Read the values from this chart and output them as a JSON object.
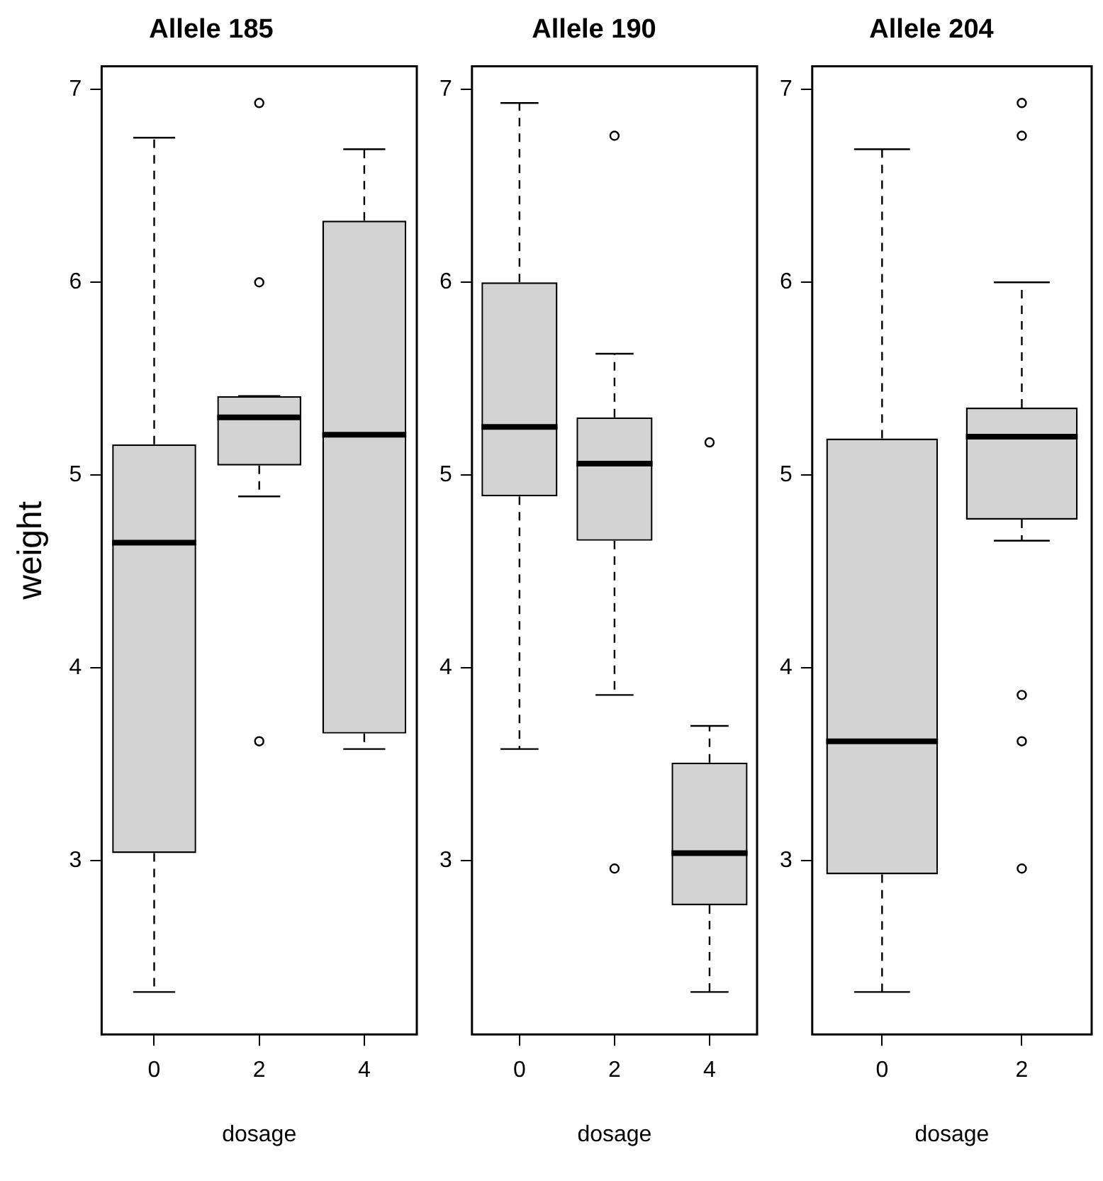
{
  "chart_data": [
    {
      "type": "box",
      "title": "Allele 185",
      "xlabel": "dosage",
      "ylabel": "weight",
      "categories": [
        "0",
        "2",
        "4"
      ],
      "ylim": [
        2.1,
        7.12
      ],
      "yticks": [
        3,
        4,
        5,
        6,
        7
      ],
      "boxes": [
        {
          "low": 2.32,
          "q1": 3.04,
          "median": 4.65,
          "q3": 5.16,
          "high": 6.75
        },
        {
          "low": 4.89,
          "q1": 5.05,
          "median": 5.3,
          "q3": 5.41,
          "high": 5.41,
          "outliers": [
            6.93,
            6.0,
            3.62
          ]
        },
        {
          "low": 3.58,
          "q1": 3.66,
          "median": 5.21,
          "q3": 6.32,
          "high": 6.69
        }
      ]
    },
    {
      "type": "box",
      "title": "Allele 190",
      "xlabel": "dosage",
      "categories": [
        "0",
        "2",
        "4"
      ],
      "ylim": [
        2.1,
        7.12
      ],
      "yticks": [
        3,
        4,
        5,
        6,
        7
      ],
      "boxes": [
        {
          "low": 3.58,
          "q1": 4.89,
          "median": 5.25,
          "q3": 6.0,
          "high": 6.93
        },
        {
          "low": 3.86,
          "q1": 4.66,
          "median": 5.06,
          "q3": 5.3,
          "high": 5.63,
          "outliers": [
            6.76,
            2.96
          ]
        },
        {
          "low": 2.32,
          "q1": 2.77,
          "median": 3.04,
          "q3": 3.51,
          "high": 3.7,
          "outliers": [
            5.17
          ]
        }
      ]
    },
    {
      "type": "box",
      "title": "Allele 204",
      "xlabel": "dosage",
      "categories": [
        "0",
        "2"
      ],
      "ylim": [
        2.1,
        7.12
      ],
      "yticks": [
        3,
        4,
        5,
        6,
        7
      ],
      "boxes": [
        {
          "low": 2.32,
          "q1": 2.93,
          "median": 3.62,
          "q3": 5.19,
          "high": 6.69
        },
        {
          "low": 4.66,
          "q1": 4.77,
          "median": 5.2,
          "q3": 5.35,
          "high": 6.0,
          "outliers": [
            6.93,
            6.76,
            3.86,
            3.62,
            2.96
          ]
        }
      ]
    }
  ]
}
